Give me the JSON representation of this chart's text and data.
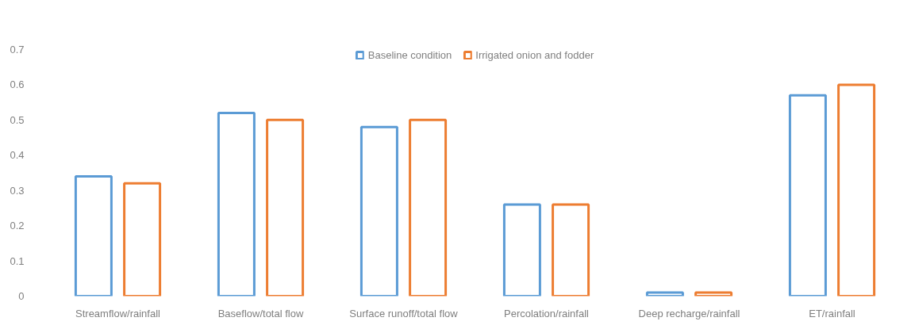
{
  "chart_data": {
    "type": "bar",
    "categories": [
      "Streamflow/rainfall",
      "Baseflow/total flow",
      "Surface runoff/total flow",
      "Percolation/rainfall",
      "Deep recharge/rainfall",
      "ET/rainfall"
    ],
    "series": [
      {
        "name": "Baseline condition",
        "color": "#5b9bd5",
        "values": [
          0.34,
          0.52,
          0.48,
          0.26,
          0.01,
          0.57
        ]
      },
      {
        "name": "Irrigated onion and fodder",
        "color": "#ed7d31",
        "values": [
          0.32,
          0.5,
          0.5,
          0.26,
          0.01,
          0.6
        ]
      }
    ],
    "ylim": [
      0,
      0.7
    ],
    "yticks": [
      0,
      0.1,
      0.2,
      0.3,
      0.4,
      0.5,
      0.6,
      0.7
    ],
    "grid": false,
    "legend": "top"
  }
}
